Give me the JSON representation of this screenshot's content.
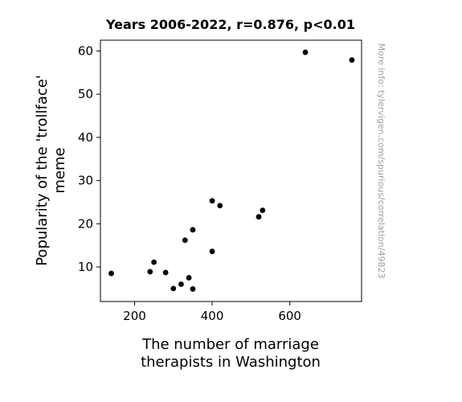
{
  "chart_data": {
    "type": "scatter",
    "title": "Years 2006-2022, r=0.876, p<0.01",
    "xlabel": [
      "The number of marriage",
      "therapists in Washington"
    ],
    "ylabel": [
      "Popularity of the 'trollface'",
      "meme"
    ],
    "xlim": [
      112,
      785
    ],
    "ylim": [
      2,
      62.5
    ],
    "xticks": [
      200,
      400,
      600
    ],
    "yticks": [
      10,
      20,
      30,
      40,
      50,
      60
    ],
    "xtick_labels": [
      "200",
      "400",
      "600"
    ],
    "ytick_labels": [
      "10",
      "20",
      "30",
      "40",
      "50",
      "60"
    ],
    "grid": false,
    "point_color": "#000000",
    "points": [
      {
        "x": 140,
        "y": 8.5
      },
      {
        "x": 240,
        "y": 8.9
      },
      {
        "x": 250,
        "y": 11.1
      },
      {
        "x": 280,
        "y": 8.7
      },
      {
        "x": 300,
        "y": 5.0
      },
      {
        "x": 320,
        "y": 6.0
      },
      {
        "x": 330,
        "y": 16.2
      },
      {
        "x": 340,
        "y": 7.5
      },
      {
        "x": 350,
        "y": 4.9
      },
      {
        "x": 350,
        "y": 18.6
      },
      {
        "x": 400,
        "y": 25.3
      },
      {
        "x": 400,
        "y": 13.6
      },
      {
        "x": 420,
        "y": 24.2
      },
      {
        "x": 520,
        "y": 21.6
      },
      {
        "x": 530,
        "y": 23.1
      },
      {
        "x": 640,
        "y": 59.7
      },
      {
        "x": 760,
        "y": 57.9
      }
    ],
    "side_note": "More info: tylervigen.com/spurious/correlation/49823"
  }
}
